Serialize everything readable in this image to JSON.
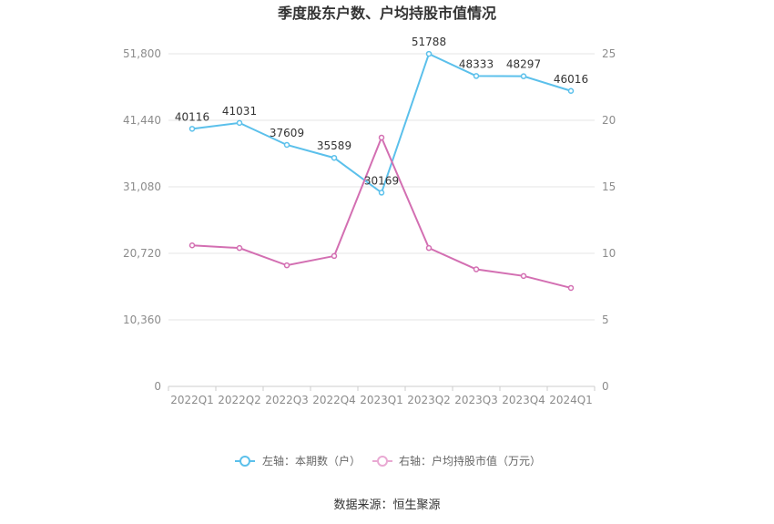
{
  "chart_data": {
    "type": "line",
    "title": "季度股东户数、户均持股市值情况",
    "categories": [
      "2022Q1",
      "2022Q2",
      "2022Q3",
      "2022Q4",
      "2023Q1",
      "2023Q2",
      "2023Q3",
      "2023Q4",
      "2024Q1"
    ],
    "series": [
      {
        "name": "左轴：本期数（户）",
        "axis": "left",
        "color": "#5bc0eb",
        "values": [
          40116,
          41031,
          37609,
          35589,
          30169,
          51788,
          48333,
          48297,
          46016
        ],
        "labels": [
          "40116",
          "41031",
          "37609",
          "35589",
          "30169",
          "51788",
          "48333",
          "48297",
          "46016"
        ]
      },
      {
        "name": "右轴：户均持股市值（万元）",
        "axis": "right",
        "color": "#d36fb2",
        "values": [
          10.6,
          10.4,
          9.1,
          9.8,
          18.7,
          10.4,
          8.8,
          8.3,
          7.4
        ]
      }
    ],
    "y_left": {
      "min": 0,
      "max": 51800,
      "ticks": [
        0,
        10360,
        20720,
        31080,
        41440,
        51800
      ],
      "tick_labels": [
        "0",
        "10,360",
        "20,720",
        "31,080",
        "41,440",
        "51,800"
      ]
    },
    "y_right": {
      "min": 0,
      "max": 25,
      "ticks": [
        0,
        5,
        10,
        15,
        20,
        25
      ],
      "tick_labels": [
        "0",
        "5",
        "10",
        "15",
        "20",
        "25"
      ]
    },
    "grid": true,
    "legend_position": "bottom"
  },
  "source": "数据来源：恒生聚源"
}
